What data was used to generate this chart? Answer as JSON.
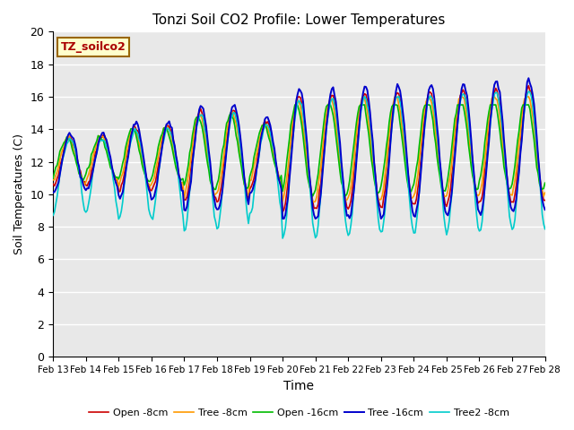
{
  "title": "Tonzi Soil CO2 Profile: Lower Temperatures",
  "xlabel": "Time",
  "ylabel": "Soil Temperatures (C)",
  "ylim": [
    0,
    20
  ],
  "xlim": [
    0,
    360
  ],
  "bg_color": "#e8e8e8",
  "annotation_text": "TZ_soilco2",
  "annotation_bg": "#ffffcc",
  "annotation_border": "#996600",
  "series": {
    "open_8cm": {
      "label": "Open -8cm",
      "color": "#cc0000",
      "lw": 1.2
    },
    "tree_8cm": {
      "label": "Tree -8cm",
      "color": "#ff9900",
      "lw": 1.2
    },
    "open_16cm": {
      "label": "Open -16cm",
      "color": "#00bb00",
      "lw": 1.2
    },
    "tree_16cm": {
      "label": "Tree -16cm",
      "color": "#0000cc",
      "lw": 1.4
    },
    "tree2_8cm": {
      "label": "Tree2 -8cm",
      "color": "#00cccc",
      "lw": 1.2
    }
  },
  "x_ticks_labels": [
    "Feb 13",
    "Feb 14",
    "Feb 15",
    "Feb 16",
    "Feb 17",
    "Feb 18",
    "Feb 19",
    "Feb 20",
    "Feb 21",
    "Feb 22",
    "Feb 23",
    "Feb 24",
    "Feb 25",
    "Feb 26",
    "Feb 27",
    "Feb 28"
  ],
  "x_ticks_pos": [
    0,
    24,
    48,
    72,
    96,
    120,
    144,
    168,
    192,
    216,
    240,
    264,
    288,
    312,
    336,
    360
  ],
  "y_ticks": [
    0,
    2,
    4,
    6,
    8,
    10,
    12,
    14,
    16,
    18,
    20
  ]
}
